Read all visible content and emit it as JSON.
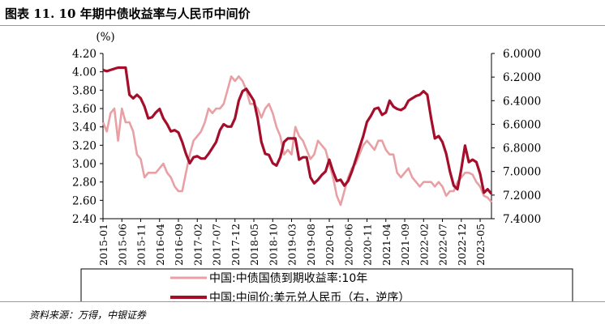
{
  "title": "图表 11. 10 年期中债收益率与人民币中间价",
  "source": "资料来源：万得，中银证券",
  "colors": {
    "yield": "#e8a0a4",
    "fx": "#a50e2b"
  },
  "chart_data": {
    "type": "line",
    "left_axis": {
      "unit": "(%)",
      "range": [
        2.4,
        4.2
      ],
      "ticks": [
        "4.20",
        "4.00",
        "3.80",
        "3.60",
        "3.40",
        "3.20",
        "3.00",
        "2.80",
        "2.60",
        "2.40"
      ]
    },
    "right_axis": {
      "range": [
        6.0,
        7.4
      ],
      "inverted": true,
      "ticks": [
        "6.0000",
        "6.2000",
        "6.4000",
        "6.6000",
        "6.8000",
        "7.0000",
        "7.2000",
        "7.4000"
      ]
    },
    "x_ticks": [
      "2015-01",
      "2015-06",
      "2015-11",
      "2016-04",
      "2016-09",
      "2017-02",
      "2017-07",
      "2017-12",
      "2018-05",
      "2018-10",
      "2019-03",
      "2019-08",
      "2020-01",
      "2020-06",
      "2020-11",
      "2021-04",
      "2021-09",
      "2022-02",
      "2022-07",
      "2022-12",
      "2023-05"
    ],
    "x_range": [
      "2015-01",
      "2023-08"
    ],
    "legend_position": "bottom",
    "series": [
      {
        "name": "中国:中债国债到期收益率:10年",
        "axis": "left",
        "points": [
          [
            "2015-01",
            3.45
          ],
          [
            "2015-02",
            3.35
          ],
          [
            "2015-03",
            3.55
          ],
          [
            "2015-04",
            3.6
          ],
          [
            "2015-05",
            3.25
          ],
          [
            "2015-06",
            3.6
          ],
          [
            "2015-07",
            3.45
          ],
          [
            "2015-08",
            3.45
          ],
          [
            "2015-09",
            3.35
          ],
          [
            "2015-10",
            3.1
          ],
          [
            "2015-11",
            3.05
          ],
          [
            "2015-12",
            2.85
          ],
          [
            "2016-01",
            2.9
          ],
          [
            "2016-02",
            2.9
          ],
          [
            "2016-03",
            2.9
          ],
          [
            "2016-04",
            2.95
          ],
          [
            "2016-05",
            3.0
          ],
          [
            "2016-06",
            2.9
          ],
          [
            "2016-07",
            2.85
          ],
          [
            "2016-08",
            2.75
          ],
          [
            "2016-09",
            2.7
          ],
          [
            "2016-10",
            2.7
          ],
          [
            "2016-11",
            2.9
          ],
          [
            "2016-12",
            3.1
          ],
          [
            "2017-01",
            3.25
          ],
          [
            "2017-02",
            3.3
          ],
          [
            "2017-03",
            3.35
          ],
          [
            "2017-04",
            3.45
          ],
          [
            "2017-05",
            3.6
          ],
          [
            "2017-06",
            3.55
          ],
          [
            "2017-07",
            3.6
          ],
          [
            "2017-08",
            3.6
          ],
          [
            "2017-09",
            3.65
          ],
          [
            "2017-10",
            3.8
          ],
          [
            "2017-11",
            3.95
          ],
          [
            "2017-12",
            3.9
          ],
          [
            "2018-01",
            3.95
          ],
          [
            "2018-02",
            3.9
          ],
          [
            "2018-03",
            3.8
          ],
          [
            "2018-04",
            3.65
          ],
          [
            "2018-05",
            3.65
          ],
          [
            "2018-06",
            3.6
          ],
          [
            "2018-07",
            3.5
          ],
          [
            "2018-08",
            3.6
          ],
          [
            "2018-09",
            3.65
          ],
          [
            "2018-10",
            3.55
          ],
          [
            "2018-11",
            3.4
          ],
          [
            "2018-12",
            3.3
          ],
          [
            "2019-01",
            3.1
          ],
          [
            "2019-02",
            3.15
          ],
          [
            "2019-03",
            3.1
          ],
          [
            "2019-04",
            3.4
          ],
          [
            "2019-05",
            3.3
          ],
          [
            "2019-06",
            3.25
          ],
          [
            "2019-07",
            3.15
          ],
          [
            "2019-08",
            3.05
          ],
          [
            "2019-09",
            3.1
          ],
          [
            "2019-10",
            3.25
          ],
          [
            "2019-11",
            3.2
          ],
          [
            "2019-12",
            3.15
          ],
          [
            "2020-01",
            3.0
          ],
          [
            "2020-02",
            2.85
          ],
          [
            "2020-03",
            2.65
          ],
          [
            "2020-04",
            2.55
          ],
          [
            "2020-05",
            2.7
          ],
          [
            "2020-06",
            2.85
          ],
          [
            "2020-07",
            2.95
          ],
          [
            "2020-08",
            3.0
          ],
          [
            "2020-09",
            3.1
          ],
          [
            "2020-10",
            3.2
          ],
          [
            "2020-11",
            3.25
          ],
          [
            "2020-12",
            3.2
          ],
          [
            "2021-01",
            3.15
          ],
          [
            "2021-02",
            3.25
          ],
          [
            "2021-03",
            3.25
          ],
          [
            "2021-04",
            3.15
          ],
          [
            "2021-05",
            3.1
          ],
          [
            "2021-06",
            3.1
          ],
          [
            "2021-07",
            2.9
          ],
          [
            "2021-08",
            2.85
          ],
          [
            "2021-09",
            2.9
          ],
          [
            "2021-10",
            2.95
          ],
          [
            "2021-11",
            2.85
          ],
          [
            "2021-12",
            2.8
          ],
          [
            "2022-01",
            2.75
          ],
          [
            "2022-02",
            2.8
          ],
          [
            "2022-03",
            2.8
          ],
          [
            "2022-04",
            2.8
          ],
          [
            "2022-05",
            2.75
          ],
          [
            "2022-06",
            2.8
          ],
          [
            "2022-07",
            2.75
          ],
          [
            "2022-08",
            2.65
          ],
          [
            "2022-09",
            2.7
          ],
          [
            "2022-10",
            2.7
          ],
          [
            "2022-11",
            2.8
          ],
          [
            "2022-12",
            2.85
          ],
          [
            "2023-01",
            2.9
          ],
          [
            "2023-02",
            2.9
          ],
          [
            "2023-03",
            2.88
          ],
          [
            "2023-04",
            2.8
          ],
          [
            "2023-05",
            2.75
          ],
          [
            "2023-06",
            2.65
          ],
          [
            "2023-07",
            2.63
          ],
          [
            "2023-08",
            2.58
          ]
        ]
      },
      {
        "name": "中国:中间价:美元兑人民币（右，逆序）",
        "axis": "right",
        "points": [
          [
            "2015-01",
            6.14
          ],
          [
            "2015-02",
            6.15
          ],
          [
            "2015-03",
            6.14
          ],
          [
            "2015-04",
            6.13
          ],
          [
            "2015-05",
            6.12
          ],
          [
            "2015-06",
            6.12
          ],
          [
            "2015-07",
            6.12
          ],
          [
            "2015-08",
            6.35
          ],
          [
            "2015-09",
            6.38
          ],
          [
            "2015-10",
            6.35
          ],
          [
            "2015-11",
            6.38
          ],
          [
            "2015-12",
            6.45
          ],
          [
            "2016-01",
            6.55
          ],
          [
            "2016-02",
            6.54
          ],
          [
            "2016-03",
            6.5
          ],
          [
            "2016-04",
            6.47
          ],
          [
            "2016-05",
            6.55
          ],
          [
            "2016-06",
            6.6
          ],
          [
            "2016-07",
            6.66
          ],
          [
            "2016-08",
            6.65
          ],
          [
            "2016-09",
            6.67
          ],
          [
            "2016-10",
            6.75
          ],
          [
            "2016-11",
            6.85
          ],
          [
            "2016-12",
            6.93
          ],
          [
            "2017-01",
            6.88
          ],
          [
            "2017-02",
            6.87
          ],
          [
            "2017-03",
            6.89
          ],
          [
            "2017-04",
            6.89
          ],
          [
            "2017-05",
            6.85
          ],
          [
            "2017-06",
            6.8
          ],
          [
            "2017-07",
            6.75
          ],
          [
            "2017-08",
            6.65
          ],
          [
            "2017-09",
            6.6
          ],
          [
            "2017-10",
            6.62
          ],
          [
            "2017-11",
            6.62
          ],
          [
            "2017-12",
            6.55
          ],
          [
            "2018-01",
            6.4
          ],
          [
            "2018-02",
            6.32
          ],
          [
            "2018-03",
            6.3
          ],
          [
            "2018-04",
            6.35
          ],
          [
            "2018-05",
            6.4
          ],
          [
            "2018-06",
            6.55
          ],
          [
            "2018-07",
            6.75
          ],
          [
            "2018-08",
            6.85
          ],
          [
            "2018-09",
            6.86
          ],
          [
            "2018-10",
            6.93
          ],
          [
            "2018-11",
            6.95
          ],
          [
            "2018-12",
            6.88
          ],
          [
            "2019-01",
            6.75
          ],
          [
            "2019-02",
            6.72
          ],
          [
            "2019-03",
            6.72
          ],
          [
            "2019-04",
            6.72
          ],
          [
            "2019-05",
            6.9
          ],
          [
            "2019-06",
            6.88
          ],
          [
            "2019-07",
            6.88
          ],
          [
            "2019-08",
            7.05
          ],
          [
            "2019-09",
            7.1
          ],
          [
            "2019-10",
            7.07
          ],
          [
            "2019-11",
            7.03
          ],
          [
            "2019-12",
            7.0
          ],
          [
            "2020-01",
            6.9
          ],
          [
            "2020-02",
            7.0
          ],
          [
            "2020-03",
            7.08
          ],
          [
            "2020-04",
            7.07
          ],
          [
            "2020-05",
            7.12
          ],
          [
            "2020-06",
            7.08
          ],
          [
            "2020-07",
            7.0
          ],
          [
            "2020-08",
            6.9
          ],
          [
            "2020-09",
            6.8
          ],
          [
            "2020-10",
            6.7
          ],
          [
            "2020-11",
            6.58
          ],
          [
            "2020-12",
            6.53
          ],
          [
            "2021-01",
            6.47
          ],
          [
            "2021-02",
            6.46
          ],
          [
            "2021-03",
            6.52
          ],
          [
            "2021-04",
            6.5
          ],
          [
            "2021-05",
            6.4
          ],
          [
            "2021-06",
            6.45
          ],
          [
            "2021-07",
            6.47
          ],
          [
            "2021-08",
            6.48
          ],
          [
            "2021-09",
            6.46
          ],
          [
            "2021-10",
            6.4
          ],
          [
            "2021-11",
            6.38
          ],
          [
            "2021-12",
            6.36
          ],
          [
            "2022-01",
            6.35
          ],
          [
            "2022-02",
            6.32
          ],
          [
            "2022-03",
            6.35
          ],
          [
            "2022-04",
            6.55
          ],
          [
            "2022-05",
            6.72
          ],
          [
            "2022-06",
            6.7
          ],
          [
            "2022-07",
            6.75
          ],
          [
            "2022-08",
            6.85
          ],
          [
            "2022-09",
            7.0
          ],
          [
            "2022-10",
            7.12
          ],
          [
            "2022-11",
            7.15
          ],
          [
            "2022-12",
            6.98
          ],
          [
            "2023-01",
            6.78
          ],
          [
            "2023-02",
            6.92
          ],
          [
            "2023-03",
            6.9
          ],
          [
            "2023-04",
            6.92
          ],
          [
            "2023-05",
            7.02
          ],
          [
            "2023-06",
            7.18
          ],
          [
            "2023-07",
            7.15
          ],
          [
            "2023-08",
            7.19
          ]
        ]
      }
    ]
  }
}
